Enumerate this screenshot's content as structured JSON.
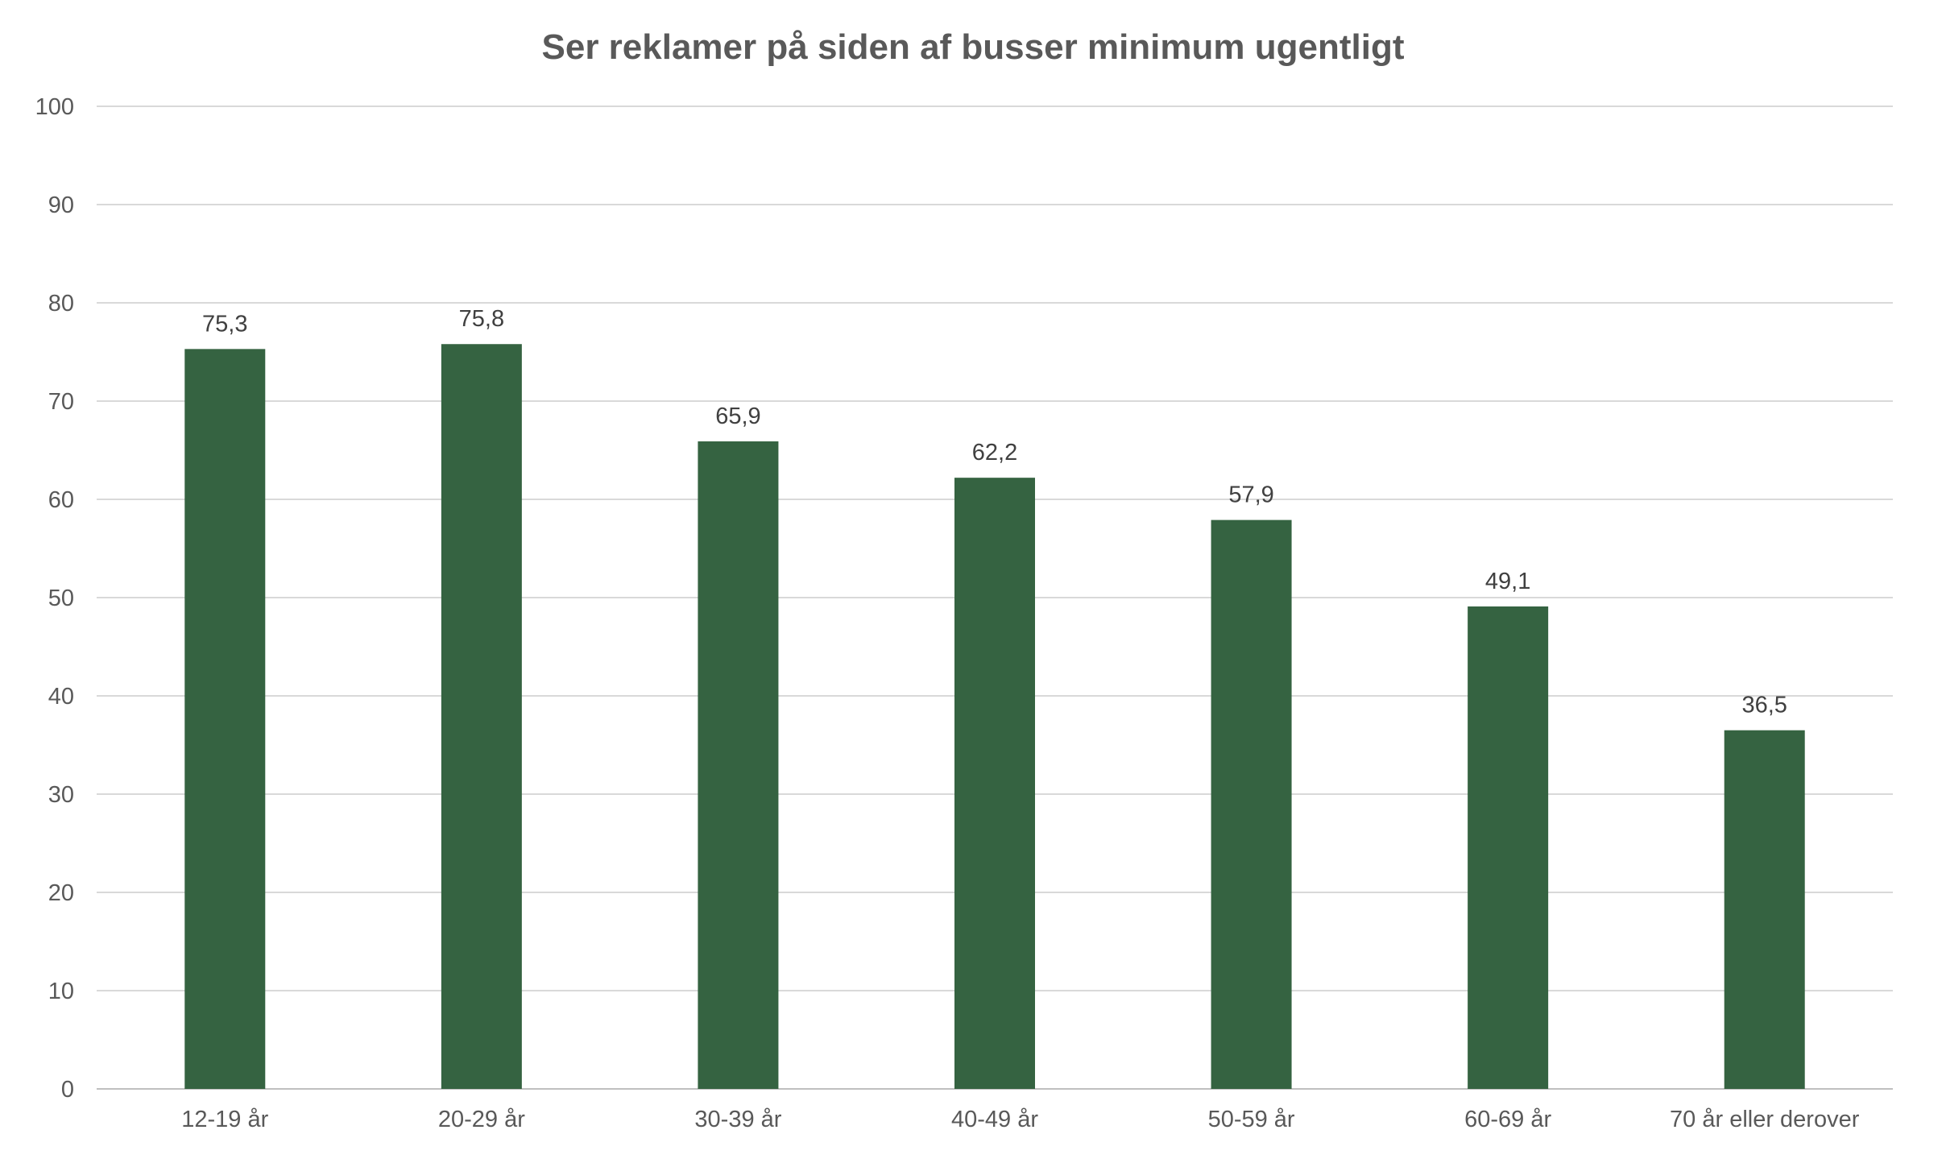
{
  "chart_data": {
    "type": "bar",
    "title": "Ser reklamer på siden af busser minimum ugentligt",
    "categories": [
      "12-19 år",
      "20-29 år",
      "30-39 år",
      "40-49 år",
      "50-59 år",
      "60-69 år",
      "70 år eller derover"
    ],
    "values": [
      75.3,
      75.8,
      65.9,
      62.2,
      57.9,
      49.1,
      36.5
    ],
    "value_labels": [
      "75,3",
      "75,8",
      "65,9",
      "62,2",
      "57,9",
      "49,1",
      "36,5"
    ],
    "yticks": [
      "0",
      "10",
      "20",
      "30",
      "40",
      "50",
      "60",
      "70",
      "80",
      "90",
      "100"
    ],
    "ylim": [
      0,
      100
    ],
    "xlabel": "",
    "ylabel": "",
    "grid": true,
    "legend": "none",
    "bar_color": "#356341"
  }
}
